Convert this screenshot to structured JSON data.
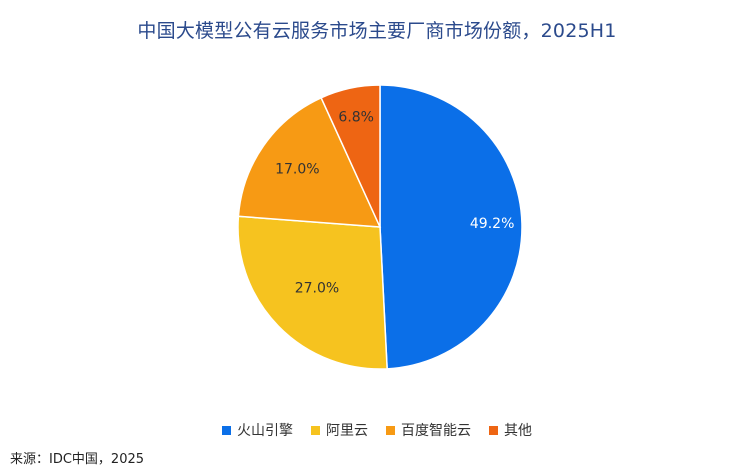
{
  "chart_data": {
    "type": "pie",
    "title": "中国大模型公有云服务市场主要厂商市场份额，2025H1",
    "categories": [
      "火山引擎",
      "阿里云",
      "百度智能云",
      "其他"
    ],
    "values": [
      49.2,
      27.0,
      17.0,
      6.8
    ],
    "value_labels": [
      "49.2%",
      "27.0%",
      "17.0%",
      "6.8%"
    ],
    "colors": [
      "#0b6fe8",
      "#f6c31f",
      "#f79a14",
      "#ee6513"
    ],
    "label_colors": [
      "#ffffff",
      "#333333",
      "#333333",
      "#333333"
    ],
    "legend_position": "bottom",
    "start": "12 o'clock",
    "direction": "clockwise"
  },
  "source": "来源：IDC中国，2025"
}
